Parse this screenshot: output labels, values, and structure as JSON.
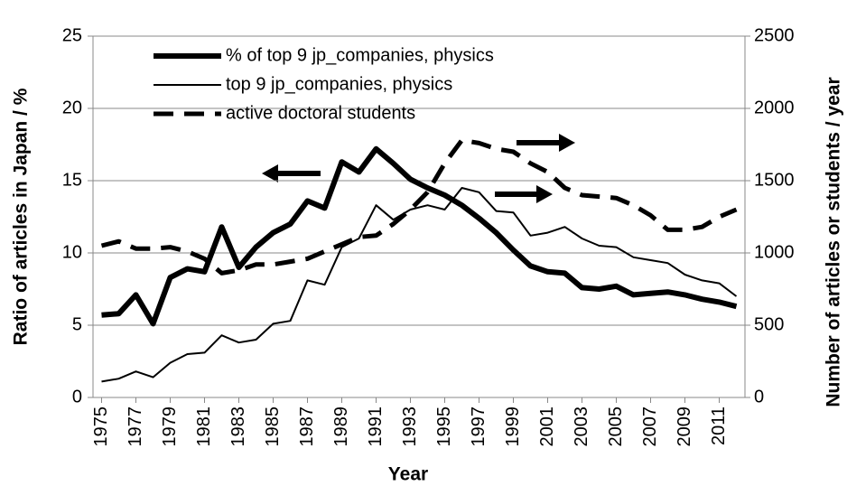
{
  "chart_data": {
    "type": "line",
    "xlabel": "Year",
    "ylabel": "Ratio of articles in Japan / %",
    "y2label": "Number of articles or students / year",
    "x": [
      1975,
      1976,
      1977,
      1978,
      1979,
      1980,
      1981,
      1982,
      1983,
      1984,
      1985,
      1986,
      1987,
      1988,
      1989,
      1990,
      1991,
      1992,
      1993,
      1994,
      1995,
      1996,
      1997,
      1998,
      1999,
      2000,
      2001,
      2002,
      2003,
      2004,
      2005,
      2006,
      2007,
      2008,
      2009,
      2010,
      2011,
      2012
    ],
    "xlim": [
      1974.5,
      2012.5
    ],
    "xticks": [
      1975,
      1977,
      1979,
      1981,
      1983,
      1985,
      1987,
      1989,
      1991,
      1993,
      1995,
      1997,
      1999,
      2001,
      2003,
      2005,
      2007,
      2009,
      2011
    ],
    "ylim": [
      0,
      25
    ],
    "yticks": [
      0,
      5,
      10,
      15,
      20,
      25
    ],
    "y2lim": [
      0,
      2500
    ],
    "y2ticks": [
      0,
      500,
      1000,
      1500,
      2000,
      2500
    ],
    "grid": true,
    "legend": "upper left",
    "series": [
      {
        "name": "% of top 9 jp_companies, physics",
        "color": "#000000",
        "linewidth": 6,
        "linestyle": "solid",
        "values": [
          5.7,
          5.8,
          7.1,
          5.1,
          8.3,
          8.9,
          8.7,
          11.8,
          9.0,
          10.4,
          11.4,
          12.0,
          13.6,
          13.1,
          16.3,
          15.6,
          17.2,
          16.2,
          15.1,
          14.5,
          14.0,
          13.3,
          12.4,
          11.4,
          10.2,
          9.1,
          8.7,
          8.6,
          7.6,
          7.5,
          7.7,
          7.1,
          7.2,
          7.3,
          7.1,
          6.8,
          6.6,
          6.3
        ]
      },
      {
        "name": "top 9 jp_companies, physics",
        "color": "#000000",
        "linewidth": 2,
        "linestyle": "solid",
        "axis": "y2",
        "values": [
          110,
          130,
          180,
          140,
          240,
          300,
          310,
          430,
          380,
          400,
          510,
          530,
          810,
          780,
          1040,
          1100,
          1330,
          1230,
          1300,
          1330,
          1300,
          1450,
          1420,
          1290,
          1280,
          1120,
          1140,
          1180,
          1100,
          1050,
          1040,
          970,
          950,
          930,
          850,
          810,
          790,
          700
        ]
      },
      {
        "name": "active doctoral students",
        "color": "#000000",
        "linewidth": 5,
        "linestyle": "dashed",
        "axis": "y2",
        "values": [
          1050,
          1080,
          1030,
          1030,
          1040,
          1010,
          960,
          860,
          880,
          920,
          920,
          940,
          960,
          1010,
          1060,
          1110,
          1120,
          1200,
          1300,
          1420,
          1620,
          1780,
          1760,
          1720,
          1700,
          1620,
          1560,
          1450,
          1400,
          1390,
          1380,
          1330,
          1260,
          1160,
          1160,
          1180,
          1250,
          1300
        ]
      }
    ]
  }
}
